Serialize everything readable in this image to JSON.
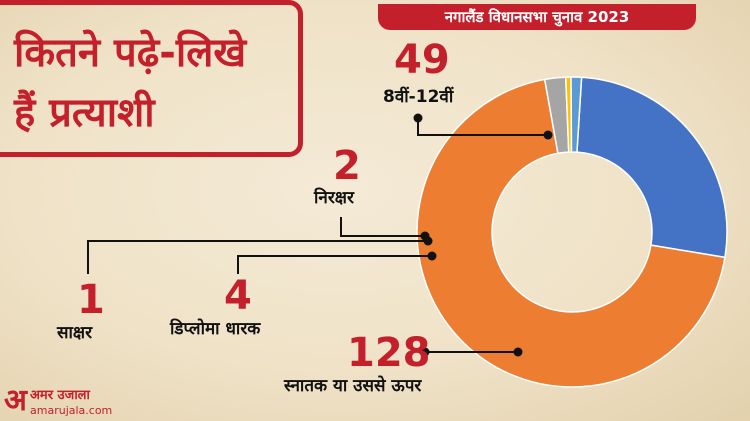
{
  "headline": {
    "line1": "कितने पढ़े-लिखे",
    "line2": "हैं प्रत्याशी"
  },
  "banner": "नगालैंड विधानसभा चुनाव 2023",
  "chart_data": {
    "type": "pie",
    "donut": true,
    "categories": [
      "8वीं-12वीं",
      "स्नातक या उससे ऊपर",
      "डिप्लोमा धारक",
      "साक्षर",
      "निरक्षर"
    ],
    "values": [
      49,
      128,
      4,
      1,
      2
    ],
    "colors": [
      "#4472c4",
      "#ed7d31",
      "#a5a5a5",
      "#ffc000",
      "#5b9bd5"
    ]
  },
  "callouts": [
    {
      "value": "49",
      "label": "8वीं-12वीं"
    },
    {
      "value": "2",
      "label": "निरक्षर"
    },
    {
      "value": "1",
      "label": "साक्षर"
    },
    {
      "value": "4",
      "label": "डिप्लोमा धारक"
    },
    {
      "value": "128",
      "label": "स्नातक या उससे ऊपर"
    }
  ],
  "brand": {
    "name": "अमर उजाला",
    "url": "amarujala.com"
  }
}
